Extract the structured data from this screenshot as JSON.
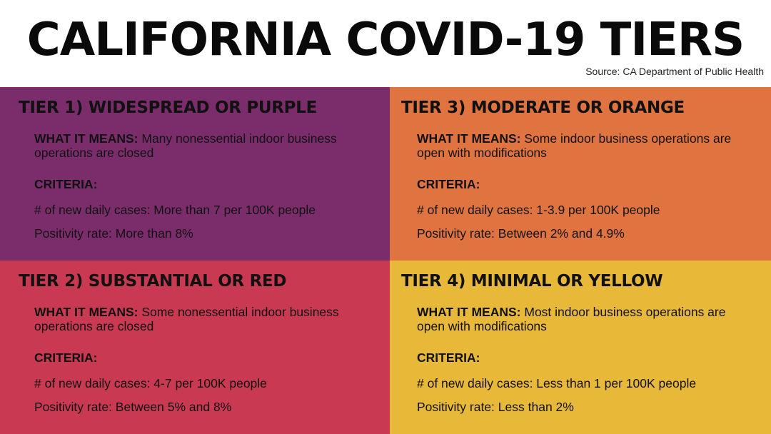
{
  "title": "CALIFORNIA COVID-19 TIERS",
  "source": "Source: CA Department of Public Health",
  "colors": {
    "purple": "#7b2d6b",
    "orange": "#e07440",
    "red": "#c93a52",
    "yellow": "#e8b838"
  },
  "tiers": [
    {
      "title": "TIER 1) WIDESPREAD OR PURPLE",
      "means_label": "WHAT IT MEANS:",
      "means_text": "Many nonessential indoor business operations are closed",
      "criteria_label": "CRITERIA:",
      "cases": "# of new daily cases: More than 7 per 100K people",
      "positivity": "Positivity rate: More than 8%"
    },
    {
      "title": "TIER 2) SUBSTANTIAL OR RED",
      "means_label": "WHAT IT MEANS:",
      "means_text": "Some nonessential indoor business operations are closed",
      "criteria_label": "CRITERIA:",
      "cases": "# of new daily cases: 4-7 per 100K people",
      "positivity": "Positivity rate: Between 5% and 8%"
    },
    {
      "title": "TIER 3) MODERATE OR ORANGE",
      "means_label": "WHAT IT MEANS:",
      "means_text": "Some indoor business operations are open with modifications",
      "criteria_label": "CRITERIA:",
      "cases": "# of new daily cases: 1-3.9 per 100K people",
      "positivity": "Positivity rate: Between 2% and 4.9%"
    },
    {
      "title": "TIER 4) MINIMAL OR YELLOW",
      "means_label": "WHAT IT MEANS:",
      "means_text": "Most indoor business operations are open with modifications",
      "criteria_label": "CRITERIA:",
      "cases": "# of new daily cases: Less than 1 per 100K people",
      "positivity": "Positivity rate: Less than 2%"
    }
  ]
}
